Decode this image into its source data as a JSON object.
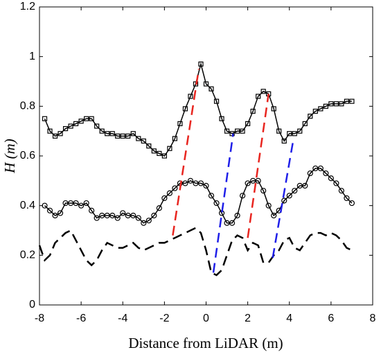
{
  "chart_data": {
    "type": "line",
    "xlabel": "Distance from LiDAR (m)",
    "ylabel": "H (m)",
    "xlim": [
      -8,
      8
    ],
    "ylim": [
      0,
      1.2
    ],
    "xticks": [
      -8,
      -6,
      -4,
      -2,
      0,
      2,
      4,
      6,
      8
    ],
    "yticks": [
      0,
      0.2,
      0.4,
      0.6,
      0.8,
      1,
      1.2
    ],
    "series": [
      {
        "color": "#000000",
        "marker": "square",
        "dash": false,
        "x": [
          -7.75,
          -7.5,
          -7.25,
          -7,
          -6.75,
          -6.5,
          -6.25,
          -6,
          -5.75,
          -5.5,
          -5.25,
          -5,
          -4.75,
          -4.5,
          -4.25,
          -4,
          -3.75,
          -3.5,
          -3.25,
          -3,
          -2.75,
          -2.5,
          -2.25,
          -2,
          -1.75,
          -1.5,
          -1.25,
          -1,
          -0.75,
          -0.5,
          -0.25,
          0,
          0.25,
          0.5,
          0.75,
          1,
          1.25,
          1.5,
          1.75,
          2,
          2.25,
          2.5,
          2.75,
          3,
          3.25,
          3.5,
          3.75,
          4,
          4.25,
          4.5,
          4.75,
          5,
          5.25,
          5.5,
          5.75,
          6,
          6.25,
          6.5,
          6.75,
          7
        ],
        "values": [
          0.75,
          0.7,
          0.68,
          0.69,
          0.71,
          0.72,
          0.73,
          0.74,
          0.75,
          0.75,
          0.72,
          0.7,
          0.69,
          0.69,
          0.68,
          0.68,
          0.68,
          0.69,
          0.67,
          0.66,
          0.64,
          0.62,
          0.61,
          0.6,
          0.63,
          0.67,
          0.73,
          0.79,
          0.84,
          0.89,
          0.97,
          0.89,
          0.87,
          0.82,
          0.75,
          0.7,
          0.69,
          0.7,
          0.7,
          0.73,
          0.78,
          0.84,
          0.86,
          0.85,
          0.79,
          0.7,
          0.66,
          0.69,
          0.69,
          0.7,
          0.73,
          0.76,
          0.78,
          0.79,
          0.8,
          0.81,
          0.81,
          0.81,
          0.82,
          0.82
        ]
      },
      {
        "color": "#000000",
        "marker": "circle",
        "dash": false,
        "x": [
          -7.75,
          -7.5,
          -7.25,
          -7,
          -6.75,
          -6.5,
          -6.25,
          -6,
          -5.75,
          -5.5,
          -5.25,
          -5,
          -4.75,
          -4.5,
          -4.25,
          -4,
          -3.75,
          -3.5,
          -3.25,
          -3,
          -2.75,
          -2.5,
          -2.25,
          -2,
          -1.75,
          -1.5,
          -1.25,
          -1,
          -0.75,
          -0.5,
          -0.25,
          0,
          0.25,
          0.5,
          0.75,
          1,
          1.25,
          1.5,
          1.75,
          2,
          2.25,
          2.5,
          2.75,
          3,
          3.25,
          3.5,
          3.75,
          4,
          4.25,
          4.5,
          4.75,
          5,
          5.25,
          5.5,
          5.75,
          6,
          6.25,
          6.5,
          6.75,
          7
        ],
        "values": [
          0.4,
          0.38,
          0.36,
          0.37,
          0.41,
          0.41,
          0.41,
          0.4,
          0.41,
          0.38,
          0.35,
          0.36,
          0.36,
          0.36,
          0.35,
          0.37,
          0.36,
          0.36,
          0.35,
          0.33,
          0.34,
          0.36,
          0.39,
          0.43,
          0.45,
          0.47,
          0.49,
          0.49,
          0.5,
          0.49,
          0.49,
          0.48,
          0.44,
          0.41,
          0.37,
          0.33,
          0.33,
          0.36,
          0.44,
          0.49,
          0.5,
          0.5,
          0.46,
          0.4,
          0.36,
          0.38,
          0.42,
          0.44,
          0.46,
          0.48,
          0.48,
          0.53,
          0.55,
          0.55,
          0.53,
          0.51,
          0.49,
          0.46,
          0.43,
          0.41
        ]
      },
      {
        "color": "#000000",
        "marker": "none",
        "dash": true,
        "x": [
          -8,
          -7.75,
          -7.5,
          -7.25,
          -7,
          -6.75,
          -6.5,
          -6.25,
          -6,
          -5.75,
          -5.5,
          -5.25,
          -5,
          -4.75,
          -4.5,
          -4.25,
          -4,
          -3.75,
          -3.5,
          -3.25,
          -3,
          -2.75,
          -2.5,
          -2.25,
          -2,
          -1.75,
          -1.5,
          -1.25,
          -1,
          -0.75,
          -0.5,
          -0.25,
          0,
          0.25,
          0.5,
          0.75,
          1,
          1.25,
          1.5,
          1.75,
          2,
          2.25,
          2.5,
          2.75,
          3,
          3.25,
          3.5,
          3.75,
          4,
          4.25,
          4.5,
          4.75,
          5,
          5.25,
          5.5,
          5.75,
          6,
          6.25,
          6.5,
          6.75,
          7
        ],
        "values": [
          0.24,
          0.18,
          0.2,
          0.25,
          0.27,
          0.29,
          0.3,
          0.26,
          0.22,
          0.18,
          0.16,
          0.18,
          0.22,
          0.25,
          0.24,
          0.23,
          0.23,
          0.24,
          0.25,
          0.23,
          0.22,
          0.23,
          0.24,
          0.25,
          0.25,
          0.26,
          0.27,
          0.28,
          0.29,
          0.3,
          0.31,
          0.29,
          0.22,
          0.13,
          0.12,
          0.14,
          0.2,
          0.26,
          0.28,
          0.27,
          0.22,
          0.25,
          0.24,
          0.17,
          0.17,
          0.2,
          0.22,
          0.26,
          0.27,
          0.23,
          0.22,
          0.25,
          0.28,
          0.29,
          0.29,
          0.28,
          0.29,
          0.28,
          0.26,
          0.23,
          0.22
        ]
      }
    ],
    "guides": [
      {
        "color": "#e8251f",
        "x": [
          -1.6,
          -0.35
        ],
        "y": [
          0.28,
          0.95
        ]
      },
      {
        "color": "#e8251f",
        "x": [
          2.0,
          3.0
        ],
        "y": [
          0.27,
          0.85
        ]
      },
      {
        "color": "#1f1fe8",
        "x": [
          0.35,
          1.3
        ],
        "y": [
          0.13,
          0.69
        ]
      },
      {
        "color": "#1f1fe8",
        "x": [
          3.2,
          4.2
        ],
        "y": [
          0.19,
          0.67
        ]
      }
    ]
  }
}
